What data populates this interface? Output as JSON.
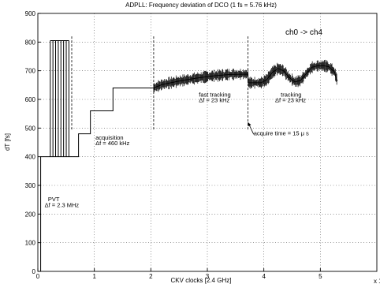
{
  "chart_data": {
    "type": "line",
    "title": "ADPLL: Frequency deviation of DCO (1 fs = 5.76 kHz)",
    "xlabel": "CKV clocks [2.4 GHz]",
    "ylabel": "dT [fs]",
    "x_exponent_label": "x 10",
    "xlim": [
      0,
      6
    ],
    "ylim": [
      0,
      900
    ],
    "xticks": [
      0,
      1,
      2,
      3,
      4,
      5
    ],
    "yticks": [
      0,
      100,
      200,
      300,
      400,
      500,
      600,
      700,
      800,
      900
    ],
    "grid": true,
    "legend_text": "ch0 -> ch4",
    "legend_position": "top-right",
    "series": [
      {
        "points": [
          [
            0.05,
            0
          ],
          [
            0.05,
            400
          ],
          [
            0.55,
            400
          ],
          [
            0.57,
            400
          ],
          [
            0.72,
            400
          ],
          [
            0.72,
            480
          ],
          [
            0.93,
            480
          ],
          [
            0.93,
            560
          ],
          [
            1.33,
            560
          ],
          [
            1.33,
            640
          ],
          [
            2.05,
            640
          ],
          [
            2.2,
            652
          ],
          [
            2.5,
            664
          ],
          [
            2.8,
            674
          ],
          [
            3.1,
            682
          ],
          [
            3.4,
            687
          ],
          [
            3.72,
            688
          ],
          [
            3.72,
            658
          ],
          [
            3.95,
            658
          ],
          [
            4.05,
            668
          ],
          [
            4.15,
            694
          ],
          [
            4.25,
            708
          ],
          [
            4.35,
            700
          ],
          [
            4.45,
            676
          ],
          [
            4.55,
            661
          ],
          [
            4.65,
            666
          ],
          [
            4.75,
            690
          ],
          [
            4.85,
            712
          ],
          [
            4.95,
            717
          ],
          [
            5.05,
            718
          ],
          [
            5.15,
            714
          ],
          [
            5.25,
            696
          ],
          [
            5.3,
            664
          ]
        ],
        "pvt_toggles": {
          "x_start": 0.22,
          "x_end": 0.55,
          "count": 8,
          "low": 400,
          "high": 805
        },
        "noise_region_x": [
          2.05,
          5.3
        ]
      }
    ],
    "markers_x": [
      0.6,
      2.05,
      3.72
    ],
    "annotations": [
      {
        "text": "PVT",
        "x": 0.18,
        "y": 245
      },
      {
        "text": "Δf = 2.3 MHz",
        "x": 0.12,
        "y": 225
      },
      {
        "text": "acquisition",
        "x": 1.02,
        "y": 460
      },
      {
        "text": "Δf = 460 kHz",
        "x": 1.02,
        "y": 440
      },
      {
        "text": "fast tracking",
        "x": 2.85,
        "y": 610
      },
      {
        "text": "Δf = 23 kHz",
        "x": 2.85,
        "y": 590
      },
      {
        "text": "tracking",
        "x": 4.3,
        "y": 610
      },
      {
        "text": "Δf = 23 kHz",
        "x": 4.2,
        "y": 590
      },
      {
        "text": "acquire time = 15 μ s",
        "x": 3.82,
        "y": 475
      }
    ],
    "arrow": {
      "from": [
        3.82,
        478
      ],
      "to": [
        3.72,
        520
      ]
    }
  }
}
